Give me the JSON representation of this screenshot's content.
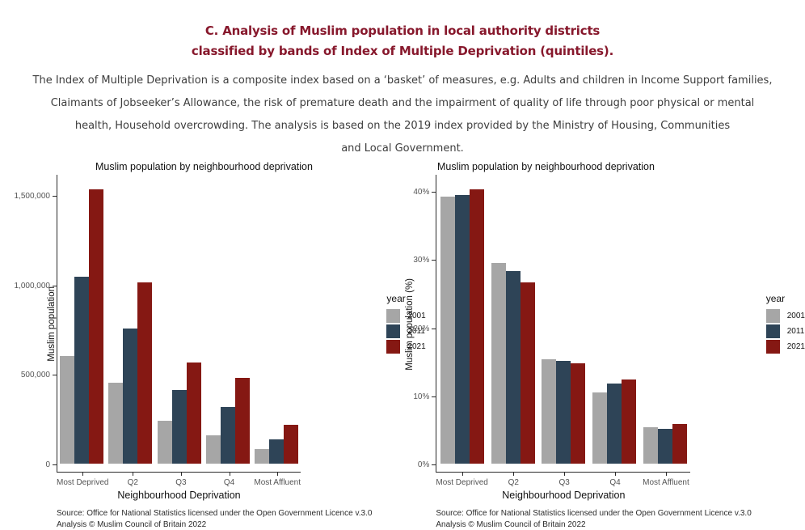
{
  "header": {
    "title_lines": [
      "C. Analysis of Muslim population in local authority districts",
      "classified by bands of Index of Multiple Deprivation (quintiles)."
    ],
    "title_color": "#87182c",
    "subtitle_lines": [
      "The Index of Multiple Deprivation is a composite index based on a ‘basket’ of measures, e.g. Adults and children in Income Support families,",
      "Claimants of Jobseeker’s Allowance, the risk of premature death and the impairment of quality of life through poor physical or mental",
      "health, Household overcrowding. The analysis is based on the 2019 index provided by the Ministry of Housing, Communities",
      "and Local Government."
    ]
  },
  "chart_data": [
    {
      "type": "bar",
      "title": "Muslim population by neighbourhood deprivation",
      "xlabel": "Neighbourhood Deprivation",
      "ylabel": "Muslim population",
      "legend_title": "year",
      "legend_position": "right",
      "grid": false,
      "categories": [
        "Most Deprived",
        "Q2",
        "Q3",
        "Q4",
        "Most Affluent"
      ],
      "series": [
        {
          "name": "2001",
          "color": "#a6a6a6",
          "values": [
            600000,
            450000,
            240000,
            160000,
            82000
          ]
        },
        {
          "name": "2011",
          "color": "#2e4457",
          "values": [
            1045000,
            755000,
            410000,
            318000,
            136000
          ]
        },
        {
          "name": "2021",
          "color": "#851813",
          "values": [
            1530000,
            1010000,
            565000,
            477000,
            218000
          ]
        }
      ],
      "ylim": [
        0,
        1617000
      ],
      "yticks": [
        {
          "value": 0,
          "label": "0"
        },
        {
          "value": 500000,
          "label": "500,000"
        },
        {
          "value": 1000000,
          "label": "1,000,000"
        },
        {
          "value": 1500000,
          "label": "1,500,000"
        }
      ],
      "caption_lines": [
        "Source: Office for National Statistics licensed under the Open Government Licence v.3.0",
        "Analysis © Muslim Council of Britain 2022"
      ]
    },
    {
      "type": "bar",
      "title": "Muslim population by neighbourhood deprivation",
      "xlabel": "Neighbourhood Deprivation",
      "ylabel": "Muslim population (%)",
      "legend_title": "year",
      "legend_position": "right",
      "grid": false,
      "categories": [
        "Most Deprived",
        "Q2",
        "Q3",
        "Q4",
        "Most Affluent"
      ],
      "series": [
        {
          "name": "2001",
          "color": "#a6a6a6",
          "values": [
            39.2,
            29.4,
            15.3,
            10.4,
            5.3
          ]
        },
        {
          "name": "2011",
          "color": "#2e4457",
          "values": [
            39.4,
            28.2,
            15.1,
            11.8,
            5.1
          ]
        },
        {
          "name": "2021",
          "color": "#851813",
          "values": [
            40.2,
            26.6,
            14.7,
            12.4,
            5.8
          ]
        }
      ],
      "ylim": [
        0,
        42.5
      ],
      "yticks": [
        {
          "value": 0,
          "label": "0%"
        },
        {
          "value": 10,
          "label": "10%"
        },
        {
          "value": 20,
          "label": "20%"
        },
        {
          "value": 30,
          "label": "30%"
        },
        {
          "value": 40,
          "label": "40%"
        }
      ],
      "caption_lines": [
        "Source: Office for National Statistics licensed under the Open Government Licence v.3.0",
        "Analysis © Muslim Council of Britain 2022"
      ]
    }
  ]
}
